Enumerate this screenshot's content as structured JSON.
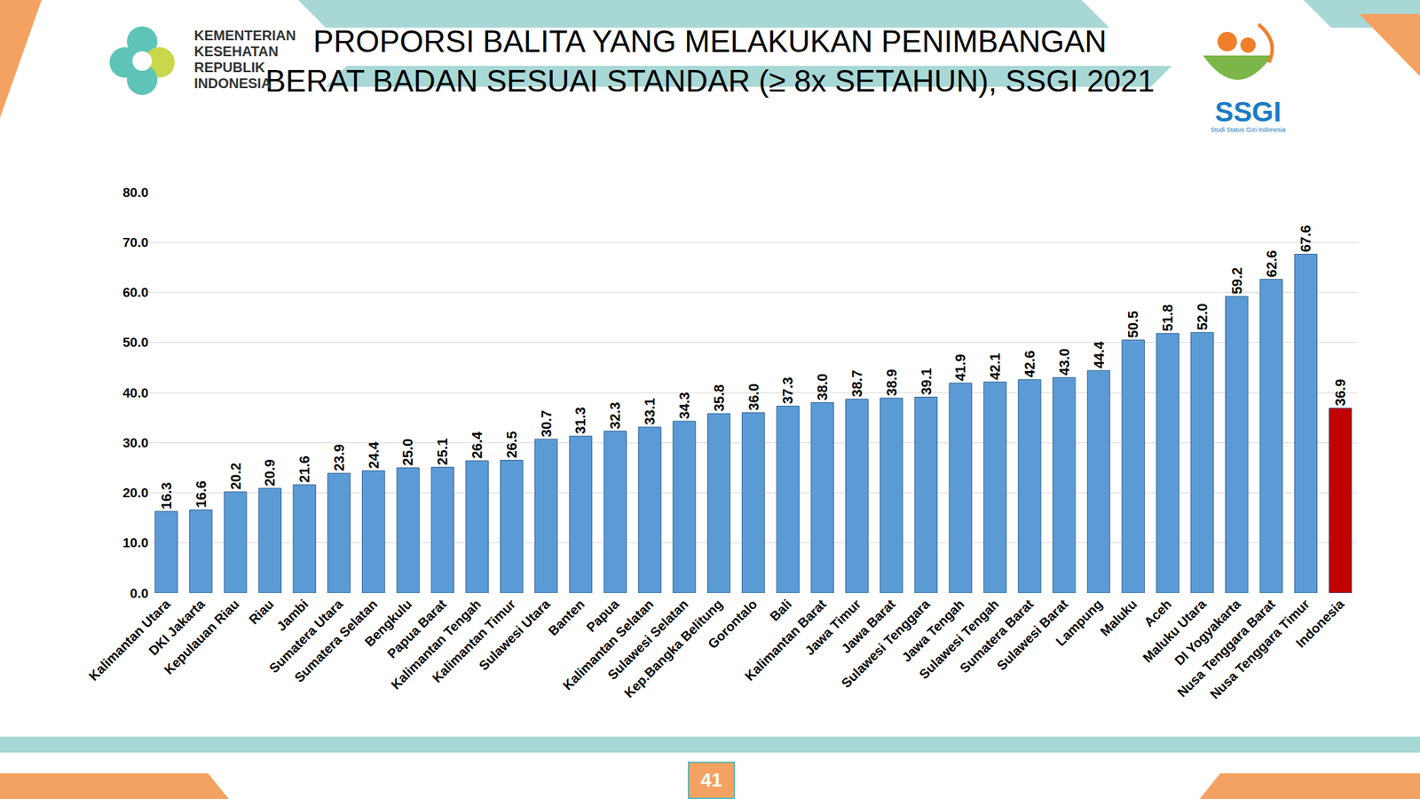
{
  "chart_data": {
    "type": "bar",
    "title": "PROPORSI BALITA YANG MELAKUKAN PENIMBANGAN\nBERAT BADAN SESUAI STANDAR (≥ 8x SETAHUN), SSGI 2021",
    "categories": [
      "Kalimantan Utara",
      "DKI Jakarta",
      "Kepulauan Riau",
      "Riau",
      "Jambi",
      "Sumatera Utara",
      "Sumatera Selatan",
      "Bengkulu",
      "Papua Barat",
      "Kalimantan Tengah",
      "Kalimantan Timur",
      "Sulawesi Utara",
      "Banten",
      "Papua",
      "Kalimantan Selatan",
      "Sulawesi Selatan",
      "Kep.Bangka Belitung",
      "Gorontalo",
      "Bali",
      "Kalimantan Barat",
      "Jawa Timur",
      "Jawa Barat",
      "Sulawesi Tenggara",
      "Jawa Tengah",
      "Sulawesi Tengah",
      "Sumatera Barat",
      "Sulawesi Barat",
      "Lampung",
      "Maluku",
      "Aceh",
      "Maluku Utara",
      "DI Yogyakarta",
      "Nusa Tenggara Barat",
      "Nusa Tenggara Timur",
      "Indonesia"
    ],
    "values": [
      16.3,
      16.6,
      20.2,
      20.9,
      21.6,
      23.9,
      24.4,
      25.0,
      25.1,
      26.4,
      26.5,
      30.7,
      31.3,
      32.3,
      33.1,
      34.3,
      35.8,
      36.0,
      37.3,
      38.0,
      38.7,
      38.9,
      39.1,
      41.9,
      42.1,
      42.6,
      43.0,
      44.4,
      50.5,
      51.8,
      52.0,
      59.2,
      62.6,
      67.6,
      36.9
    ],
    "value_labels": [
      "16.3",
      "16.6",
      "20.2",
      "20.9",
      "21.6",
      "23.9",
      "24.4",
      "25.0",
      "25.1",
      "26.4",
      "26.5",
      "30.7",
      "31.3",
      "32.3",
      "33.1",
      "34.3",
      "35.8",
      "36.0",
      "37.3",
      "38.0",
      "38.7",
      "38.9",
      "39.1",
      "41.9",
      "42.1",
      "42.6",
      "43.0",
      "44.4",
      "50.5",
      "51.8",
      "52.0",
      "59.2",
      "62.6",
      "67.6",
      "36.9"
    ],
    "colors": [
      "#5b9bd5",
      "#5b9bd5",
      "#5b9bd5",
      "#5b9bd5",
      "#5b9bd5",
      "#5b9bd5",
      "#5b9bd5",
      "#5b9bd5",
      "#5b9bd5",
      "#5b9bd5",
      "#5b9bd5",
      "#5b9bd5",
      "#5b9bd5",
      "#5b9bd5",
      "#5b9bd5",
      "#5b9bd5",
      "#5b9bd5",
      "#5b9bd5",
      "#5b9bd5",
      "#5b9bd5",
      "#5b9bd5",
      "#5b9bd5",
      "#5b9bd5",
      "#5b9bd5",
      "#5b9bd5",
      "#5b9bd5",
      "#5b9bd5",
      "#5b9bd5",
      "#5b9bd5",
      "#5b9bd5",
      "#5b9bd5",
      "#5b9bd5",
      "#5b9bd5",
      "#5b9bd5",
      "#c00000"
    ],
    "ylim": [
      0,
      80
    ],
    "yticks": [
      {
        "value": 0,
        "label": "0.0"
      },
      {
        "value": 10,
        "label": "10.0"
      },
      {
        "value": 20,
        "label": "20.0"
      },
      {
        "value": 30,
        "label": "30.0"
      },
      {
        "value": 40,
        "label": "40.0"
      },
      {
        "value": 50,
        "label": "50.0"
      },
      {
        "value": 60,
        "label": "60.0"
      },
      {
        "value": 70,
        "label": "70.0"
      },
      {
        "value": 80,
        "label": "80.0"
      }
    ],
    "grid": true,
    "data_labels": true
  },
  "header": {
    "ministry": "KEMENTERIAN\nKESEHATAN\nREPUBLIK\nINDONESIA",
    "logo": "SSGI",
    "logo_caption": "Studi Status Gizi Indonesia"
  },
  "page_number": 41
}
